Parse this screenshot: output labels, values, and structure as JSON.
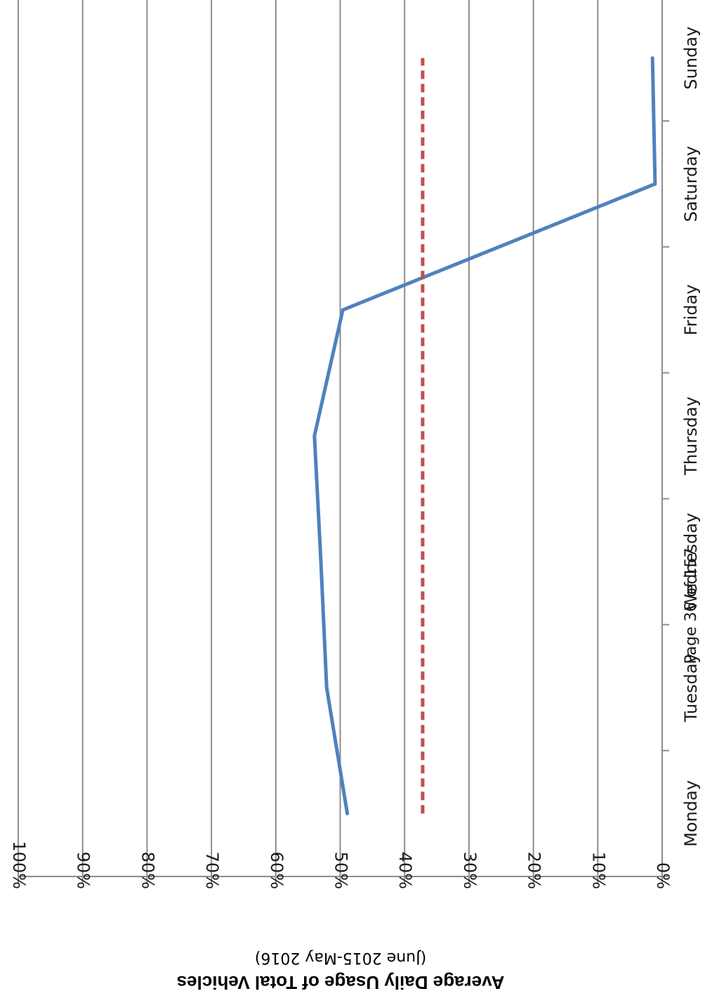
{
  "page_footer": "Page 36 of 157",
  "chart_data": {
    "type": "line",
    "orientation": "rotated-90",
    "categories": [
      "Monday",
      "Tuesday",
      "Wednesday",
      "Thursday",
      "Friday",
      "Saturday",
      "Sunday"
    ],
    "series": [
      {
        "values": [
          48.9,
          52.1,
          53.0,
          54.0,
          49.6,
          1.1,
          1.5
        ],
        "color": "#4F81BD",
        "style": "solid"
      },
      {
        "values": [
          37.2,
          37.2,
          37.2,
          37.2,
          37.2,
          37.2,
          37.2
        ],
        "color": "#C0504D",
        "style": "dashed"
      }
    ],
    "ylabel": "Average Daily Usage of Total Vehicles",
    "ylabel_sub": "(June 2015-May 2016)",
    "yticks": [
      "0%",
      "10%",
      "20%",
      "30%",
      "40%",
      "50%",
      "60%",
      "70%",
      "80%",
      "90%",
      "100%"
    ],
    "ylim": [
      0,
      100
    ],
    "grid": true,
    "gridline_color": "#8c8c8c"
  }
}
